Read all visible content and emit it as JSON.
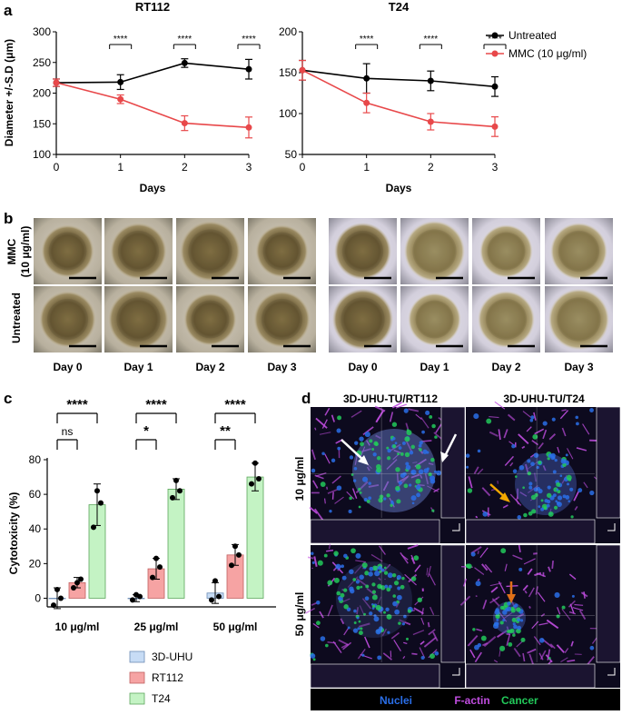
{
  "panel_labels": [
    "a",
    "b",
    "c",
    "d"
  ],
  "colors": {
    "untreated": "#000000",
    "mmc": "#e8484a",
    "uhu_fill": "#c7dcf5",
    "rt112_fill": "#f6a3a3",
    "t24_fill": "#c4f3c4",
    "nuclei": "#2a6ee8",
    "factin": "#c04de0",
    "cancer": "#22c95a"
  },
  "panel_a": {
    "shared_ylabel": "Diameter +/-S.D (μm)",
    "legend": [
      "Untreated",
      "MMC (10 μg/ml)"
    ]
  },
  "chart_data": [
    {
      "type": "line",
      "title": "RT112",
      "xlabel": "Days",
      "ylabel": "Diameter +/-S.D (μm)",
      "x": [
        0,
        1,
        2,
        3
      ],
      "xlim": [
        0,
        3
      ],
      "ylim": [
        100,
        300
      ],
      "yticks": [
        100,
        150,
        200,
        250,
        300
      ],
      "series": [
        {
          "name": "Untreated",
          "values": [
            217,
            218,
            249,
            239
          ],
          "error": [
            6,
            12,
            7,
            16
          ]
        },
        {
          "name": "MMC (10 μg/ml)",
          "values": [
            217,
            190,
            151,
            144
          ],
          "error": [
            6,
            7,
            12,
            17
          ]
        }
      ],
      "significance": [
        {
          "x": 1,
          "label": "****"
        },
        {
          "x": 2,
          "label": "****"
        },
        {
          "x": 3,
          "label": "****"
        }
      ]
    },
    {
      "type": "line",
      "title": "T24",
      "xlabel": "Days",
      "x": [
        0,
        1,
        2,
        3
      ],
      "xlim": [
        0,
        3
      ],
      "ylim": [
        50,
        200
      ],
      "yticks": [
        50,
        100,
        150,
        200
      ],
      "series": [
        {
          "name": "Untreated",
          "values": [
            153,
            143,
            140,
            133
          ],
          "error": [
            12,
            18,
            12,
            12
          ]
        },
        {
          "name": "MMC (10 μg/ml)",
          "values": [
            153,
            113,
            90,
            84
          ],
          "error": [
            12,
            12,
            10,
            12
          ]
        }
      ],
      "significance": [
        {
          "x": 1,
          "label": "****"
        },
        {
          "x": 2,
          "label": "****"
        },
        {
          "x": 3,
          "label": "****"
        }
      ]
    },
    {
      "type": "bar",
      "ylabel": "Cytotoxicity (%)",
      "categories": [
        "10 μg/ml",
        "25 μg/ml",
        "50 μg/ml"
      ],
      "ylim": [
        -5,
        80
      ],
      "yticks": [
        0,
        20,
        40,
        60,
        80
      ],
      "series": [
        {
          "name": "3D-UHU",
          "values": [
            0,
            0,
            3
          ],
          "error": [
            6,
            2,
            6
          ],
          "points": [
            [
              -4,
              0,
              5
            ],
            [
              -1,
              1,
              2
            ],
            [
              -1,
              1,
              10
            ]
          ]
        },
        {
          "name": "RT112",
          "values": [
            9,
            17,
            25
          ],
          "error": [
            3,
            6,
            6
          ],
          "points": [
            [
              6,
              11,
              9
            ],
            [
              12,
              18,
              23
            ],
            [
              19,
              25,
              30
            ]
          ]
        },
        {
          "name": "T24",
          "values": [
            54,
            63,
            70
          ],
          "error": [
            12,
            6,
            8
          ],
          "points": [
            [
              41,
              55,
              62
            ],
            [
              58,
              62,
              68
            ],
            [
              66,
              69,
              78
            ]
          ]
        }
      ],
      "significance": [
        {
          "group": 0,
          "from": 0,
          "to": 1,
          "label": "ns"
        },
        {
          "group": 0,
          "from": 0,
          "to": 2,
          "label": "****"
        },
        {
          "group": 1,
          "from": 0,
          "to": 1,
          "label": "*"
        },
        {
          "group": 1,
          "from": 0,
          "to": 2,
          "label": "****"
        },
        {
          "group": 2,
          "from": 0,
          "to": 1,
          "label": "**"
        },
        {
          "group": 2,
          "from": 0,
          "to": 2,
          "label": "****"
        }
      ]
    }
  ],
  "panel_b": {
    "row_labels": [
      "MMC",
      "(10 μg/ml)",
      "Untreated"
    ],
    "day_labels": [
      "Day 0",
      "Day 1",
      "Day 2",
      "Day 3"
    ]
  },
  "panel_d": {
    "col_titles": [
      "3D-UHU-TU/RT112",
      "3D-UHU-TU/T24"
    ],
    "row_labels": [
      "10 μg/ml",
      "50 μg/ml"
    ],
    "channel_legend": [
      "Nuclei",
      "F-actin",
      "Cancer"
    ]
  }
}
